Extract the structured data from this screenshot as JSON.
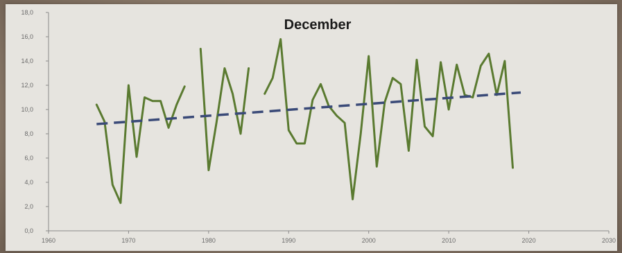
{
  "chart_data": {
    "type": "line",
    "title": "December",
    "xlabel": "",
    "ylabel": "",
    "xlim": [
      1960,
      2030
    ],
    "ylim": [
      0,
      18
    ],
    "x_ticks": [
      "1960",
      "1970",
      "1980",
      "1990",
      "2000",
      "2010",
      "2020",
      "2030"
    ],
    "y_ticks": [
      "0,0",
      "2,0",
      "4,0",
      "6,0",
      "8,0",
      "10,0",
      "12,0",
      "14,0",
      "16,0",
      "18,0"
    ],
    "grid": false,
    "legend": "none",
    "series": [
      {
        "color": "#5a7a30",
        "style": "solid",
        "x": [
          1966,
          1967,
          1968,
          1969,
          1970,
          1971,
          1972,
          1973,
          1974,
          1975,
          1976,
          1977,
          1978,
          1979,
          1980,
          1981,
          1982,
          1983,
          1984,
          1985,
          1986,
          1987,
          1988,
          1989,
          1990,
          1991,
          1992,
          1993,
          1994,
          1995,
          1996,
          1997,
          1998,
          1999,
          2000,
          2001,
          2002,
          2003,
          2004,
          2005,
          2006,
          2007,
          2008,
          2009,
          2010,
          2011,
          2012,
          2013,
          2014,
          2015,
          2016,
          2017,
          2018
        ],
        "values": [
          10.4,
          9.0,
          3.8,
          2.3,
          12.0,
          6.1,
          11.0,
          10.7,
          10.7,
          8.5,
          10.4,
          11.9,
          null,
          15.0,
          5.0,
          9.0,
          13.4,
          11.3,
          8.0,
          13.4,
          null,
          11.3,
          12.6,
          15.8,
          8.3,
          7.2,
          7.2,
          10.8,
          12.1,
          10.3,
          9.5,
          8.9,
          2.6,
          8.0,
          14.4,
          5.3,
          10.6,
          12.6,
          12.1,
          6.6,
          14.1,
          8.6,
          7.8,
          13.9,
          10.0,
          13.7,
          11.2,
          11.0,
          13.6,
          14.6,
          11.2,
          14.0,
          5.2
        ]
      },
      {
        "color": "#3a4a78",
        "style": "dashed",
        "x": [
          1966,
          2019
        ],
        "values": [
          8.8,
          11.4
        ]
      }
    ]
  }
}
